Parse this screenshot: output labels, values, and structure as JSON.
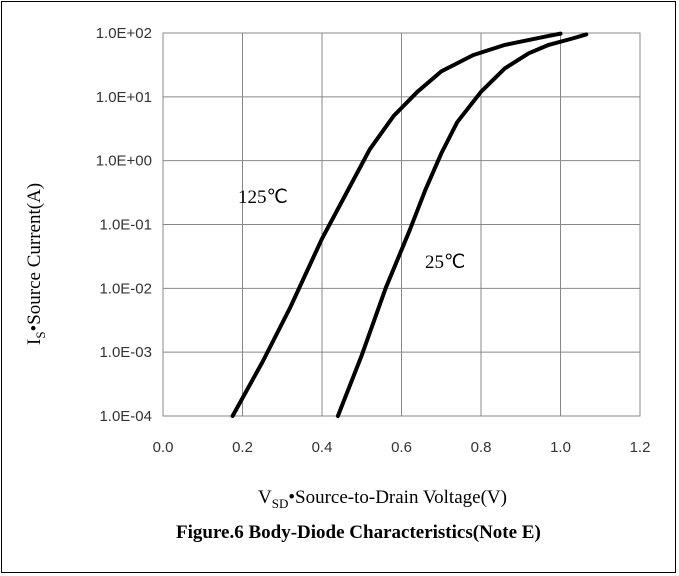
{
  "chart_data": {
    "type": "line",
    "title": "Figure.6 Body-Diode Characteristics(Note E)",
    "xlabel_main": "V",
    "xlabel_sub": "SD",
    "xlabel_rest": "•Source-to-Drain Voltage(V)",
    "ylabel_main": "I",
    "ylabel_sub": "S",
    "ylabel_rest": "•Source Current(A)",
    "x_ticks": [
      "0.0",
      "0.2",
      "0.4",
      "0.6",
      "0.8",
      "1.0",
      "1.2"
    ],
    "y_ticks": [
      "1.0E-04",
      "1.0E-03",
      "1.0E-02",
      "1.0E-01",
      "1.0E+00",
      "1.0E+01",
      "1.0E+02"
    ],
    "xlim": [
      0,
      1.2
    ],
    "ylim": [
      0.0001,
      100
    ],
    "y_scale": "log",
    "grid": true,
    "series": [
      {
        "name": "125℃",
        "x": [
          0.175,
          0.25,
          0.32,
          0.4,
          0.46,
          0.52,
          0.58,
          0.64,
          0.7,
          0.78,
          0.86,
          0.93,
          0.97,
          1.0
        ],
        "y": [
          0.0001,
          0.0007,
          0.005,
          0.06,
          0.3,
          1.5,
          5,
          12,
          25,
          45,
          65,
          80,
          90,
          98
        ]
      },
      {
        "name": "25℃",
        "x": [
          0.44,
          0.5,
          0.56,
          0.62,
          0.66,
          0.7,
          0.74,
          0.8,
          0.86,
          0.92,
          0.97,
          1.03,
          1.065
        ],
        "y": [
          0.0001,
          0.0009,
          0.01,
          0.08,
          0.35,
          1.3,
          4,
          12,
          28,
          48,
          65,
          82,
          95
        ]
      }
    ]
  }
}
